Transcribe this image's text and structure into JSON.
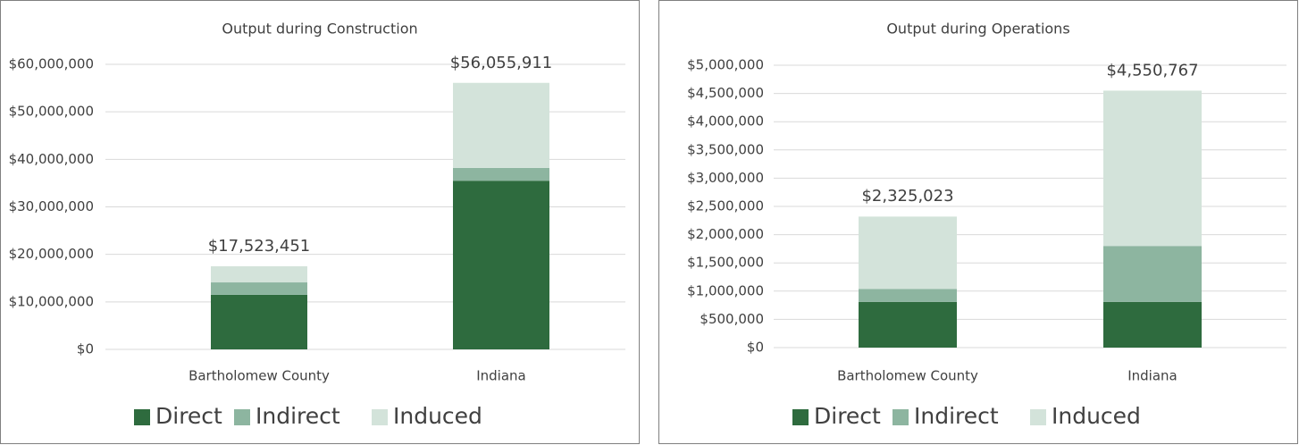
{
  "chart_data": [
    {
      "type": "bar",
      "stacked": true,
      "title": "Output during Construction",
      "categories": [
        "Bartholomew County",
        "Indiana"
      ],
      "series": [
        {
          "name": "Direct",
          "color": "#2e6b3e",
          "values": [
            11500000,
            35500000
          ]
        },
        {
          "name": "Indirect",
          "color": "#8db5a0",
          "values": [
            2600000,
            2700000
          ]
        },
        {
          "name": "Induced",
          "color": "#d3e3da",
          "values": [
            3400000,
            17900000
          ]
        }
      ],
      "totals": [
        17523451,
        56055911
      ],
      "total_labels": [
        "$17,523,451",
        "$56,055,911"
      ],
      "ylim": [
        0,
        60000000
      ],
      "yticks": [
        {
          "value": 0,
          "label": "$0"
        },
        {
          "value": 10000000,
          "label": "$10,000,000"
        },
        {
          "value": 20000000,
          "label": "$20,000,000"
        },
        {
          "value": 30000000,
          "label": "$30,000,000"
        },
        {
          "value": 40000000,
          "label": "$40,000,000"
        },
        {
          "value": 50000000,
          "label": "$50,000,000"
        },
        {
          "value": 60000000,
          "label": "$60,000,000"
        }
      ],
      "grid": true,
      "legend": "bottom"
    },
    {
      "type": "bar",
      "stacked": true,
      "title": "Output during Operations",
      "categories": [
        "Bartholomew County",
        "Indiana"
      ],
      "series": [
        {
          "name": "Direct",
          "color": "#2e6b3e",
          "values": [
            810000,
            810000
          ]
        },
        {
          "name": "Indirect",
          "color": "#8db5a0",
          "values": [
            230000,
            990000
          ]
        },
        {
          "name": "Induced",
          "color": "#d3e3da",
          "values": [
            1280000,
            2750000
          ]
        }
      ],
      "totals": [
        2325023,
        4550767
      ],
      "total_labels": [
        "$2,325,023",
        "$4,550,767"
      ],
      "ylim": [
        0,
        5000000
      ],
      "yticks": [
        {
          "value": 0,
          "label": "$0"
        },
        {
          "value": 500000,
          "label": "$500,000"
        },
        {
          "value": 1000000,
          "label": "$1,000,000"
        },
        {
          "value": 1500000,
          "label": "$1,500,000"
        },
        {
          "value": 2000000,
          "label": "$2,000,000"
        },
        {
          "value": 2500000,
          "label": "$2,500,000"
        },
        {
          "value": 3000000,
          "label": "$3,000,000"
        },
        {
          "value": 3500000,
          "label": "$3,500,000"
        },
        {
          "value": 4000000,
          "label": "$4,000,000"
        },
        {
          "value": 4500000,
          "label": "$4,500,000"
        },
        {
          "value": 5000000,
          "label": "$5,000,000"
        }
      ],
      "grid": true,
      "legend": "bottom"
    }
  ]
}
